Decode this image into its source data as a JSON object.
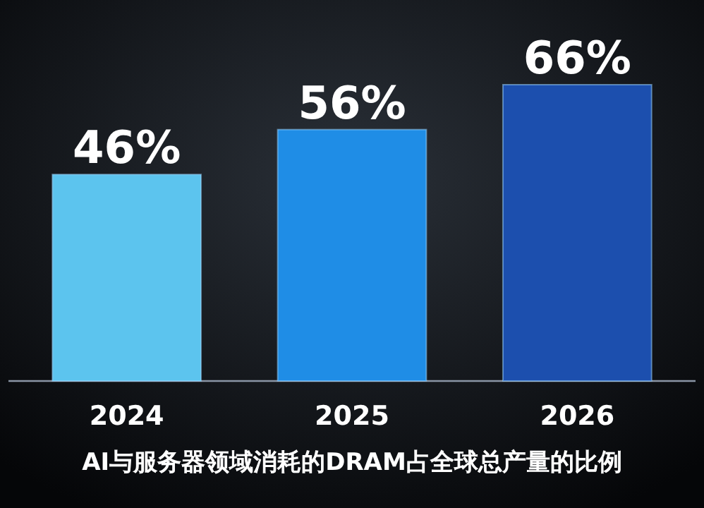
{
  "chart_data": {
    "type": "bar",
    "title": "AI与服务器领域消耗的DRAM占全球总产量的比例",
    "categories": [
      "2024",
      "2025",
      "2026"
    ],
    "values": [
      46,
      56,
      66
    ],
    "colors": [
      "#5cc4ee",
      "#1f8de6",
      "#1c4fae"
    ],
    "data_labels": true,
    "value_labels": [
      "46%",
      "56%",
      "66%"
    ]
  }
}
